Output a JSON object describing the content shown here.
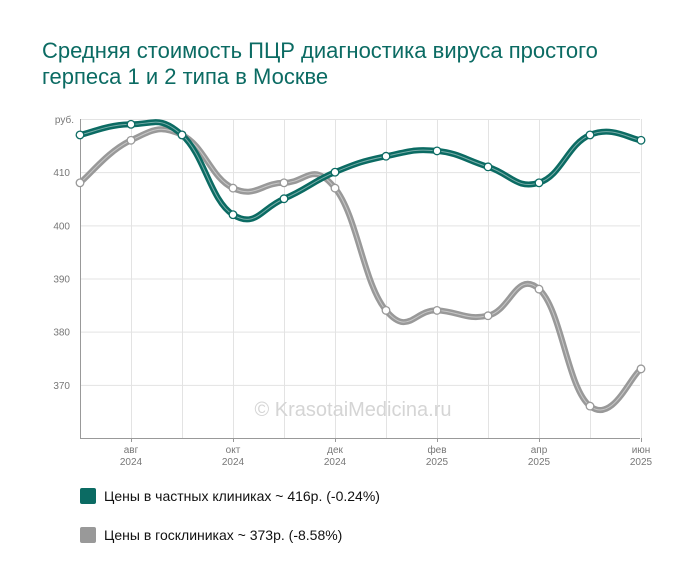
{
  "title": "Средняя стоимость ПЦР диагностика вируса простого герпеса 1 и 2 типа в Москве",
  "watermark": "© KrasotaiMedicina.ru",
  "chart_data": {
    "type": "line",
    "x": [
      "2024-07",
      "2024-08",
      "2024-09",
      "2024-10",
      "2024-11",
      "2024-12",
      "2025-01",
      "2025-02",
      "2025-03",
      "2025-04",
      "2025-05",
      "2025-06"
    ],
    "xticks": [
      {
        "month": "2024-08",
        "line1": "авг",
        "line2": "2024"
      },
      {
        "month": "2024-10",
        "line1": "окт",
        "line2": "2024"
      },
      {
        "month": "2024-12",
        "line1": "дек",
        "line2": "2024"
      },
      {
        "month": "2025-02",
        "line1": "фев",
        "line2": "2025"
      },
      {
        "month": "2025-04",
        "line1": "апр",
        "line2": "2025"
      },
      {
        "month": "2025-06",
        "line1": "июн",
        "line2": "2025"
      }
    ],
    "yticks": [
      370,
      380,
      390,
      400,
      410
    ],
    "yunit": "руб.",
    "ylim": [
      360,
      420
    ],
    "grid": true,
    "series": [
      {
        "name": "Цены в частных клиниках ~ 416р. (-0.24%)",
        "color": "#0b6b63",
        "values": [
          417,
          419,
          417,
          402,
          405,
          410,
          413,
          414,
          411,
          408,
          417,
          416
        ]
      },
      {
        "name": "Цены в госклиниках ~ 373р. (-8.58%)",
        "color": "#999999",
        "values": [
          408,
          416,
          417,
          407,
          408,
          407,
          384,
          384,
          383,
          388,
          366,
          373
        ]
      }
    ]
  }
}
